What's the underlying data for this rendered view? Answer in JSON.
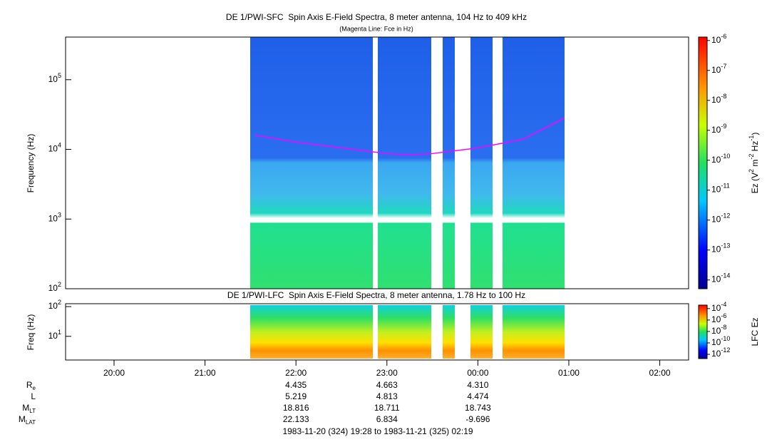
{
  "chart_data": [
    {
      "type": "line",
      "title": "DE 1/PWI-SFC  Spin Axis E-Field Spectra, 8 meter antenna, 104 Hz to 409 kHz",
      "subtitle": "(Magenta Line: Fce in Hz)",
      "y_label": "Frequency (Hz)",
      "log_y": true,
      "xlim": [
        19.467,
        26.317
      ],
      "ylim": [
        100,
        409000
      ],
      "yticks": [
        {
          "value": 100,
          "base": "10",
          "exp": "2"
        },
        {
          "value": 1000,
          "base": "10",
          "exp": "3"
        },
        {
          "value": 10000,
          "base": "10",
          "exp": "4"
        },
        {
          "value": 100000,
          "base": "10",
          "exp": "5"
        }
      ],
      "series": [
        {
          "name": "Fce",
          "color": "#ff00ff",
          "x": [
            21.55,
            22.0,
            22.5,
            23.0,
            23.25,
            23.5,
            24.0,
            24.5,
            24.95
          ],
          "values": [
            16000,
            12700,
            10500,
            8700,
            8300,
            8700,
            10500,
            14000,
            28000
          ]
        }
      ],
      "colorbar": {
        "label": [
          "Ez (V",
          "2",
          " m",
          "-2",
          " Hz",
          "-1",
          ")"
        ],
        "lim": [
          5.1e-15,
          1.3e-06
        ],
        "ticks": [
          {
            "value": 1e-06,
            "base": "10",
            "exp": "-6"
          },
          {
            "value": 1e-07,
            "base": "10",
            "exp": "-7"
          },
          {
            "value": 1e-08,
            "base": "10",
            "exp": "-8"
          },
          {
            "value": 1e-09,
            "base": "10",
            "exp": "-9"
          },
          {
            "value": 1e-10,
            "base": "10",
            "exp": "-10"
          },
          {
            "value": 1e-11,
            "base": "10",
            "exp": "-11"
          },
          {
            "value": 1e-12,
            "base": "10",
            "exp": "-12"
          },
          {
            "value": 1e-13,
            "base": "10",
            "exp": "-13"
          },
          {
            "value": 1e-14,
            "base": "10",
            "exp": "-14"
          }
        ]
      }
    },
    {
      "type": "spectrogram",
      "title": "DE 1/PWI-LFC  Spin Axis E-Field Spectra, 8 meter antenna, 1.78 Hz to 100 Hz",
      "y_label": "Freq (Hz)",
      "log_y": true,
      "xlim": [
        19.467,
        26.317
      ],
      "ylim": [
        1.6,
        125
      ],
      "yticks": [
        {
          "value": 10,
          "base": "10",
          "exp": "1"
        },
        {
          "value": 100,
          "base": "10",
          "exp": "2"
        }
      ],
      "xticks": [
        {
          "value": 20,
          "label": "20:00"
        },
        {
          "value": 21,
          "label": "21:00"
        },
        {
          "value": 22,
          "label": "22:00"
        },
        {
          "value": 23,
          "label": "23:00"
        },
        {
          "value": 24,
          "label": "00:00"
        },
        {
          "value": 25,
          "label": "01:00"
        },
        {
          "value": 26,
          "label": "02:00"
        }
      ],
      "colorbar": {
        "label": [
          "LFC Ez"
        ],
        "lim": [
          1.8e-13,
          0.0004
        ],
        "ticks": [
          {
            "value": 0.0001,
            "base": "10",
            "exp": "-4"
          },
          {
            "value": 1e-06,
            "base": "10",
            "exp": "-6"
          },
          {
            "value": 1e-08,
            "base": "10",
            "exp": "-8"
          },
          {
            "value": 1e-10,
            "base": "10",
            "exp": "-10"
          },
          {
            "value": 1e-12,
            "base": "10",
            "exp": "-12"
          }
        ]
      }
    }
  ],
  "ephemeris": [
    {
      "label": "R",
      "sub": "e",
      "values": [
        "4.435",
        "4.663",
        "4.310"
      ]
    },
    {
      "label": "L",
      "sub": "",
      "values": [
        "5.219",
        "4.813",
        "4.474"
      ]
    },
    {
      "label": "M",
      "sub": "LT",
      "values": [
        "18.816",
        "18.711",
        "18.743"
      ]
    },
    {
      "label": "M",
      "sub": "LAT",
      "values": [
        "22.133",
        "6.834",
        "-9.696"
      ]
    }
  ],
  "time_range": "1983-11-20 (324) 19:28 to 1983-11-21 (325) 02:19"
}
